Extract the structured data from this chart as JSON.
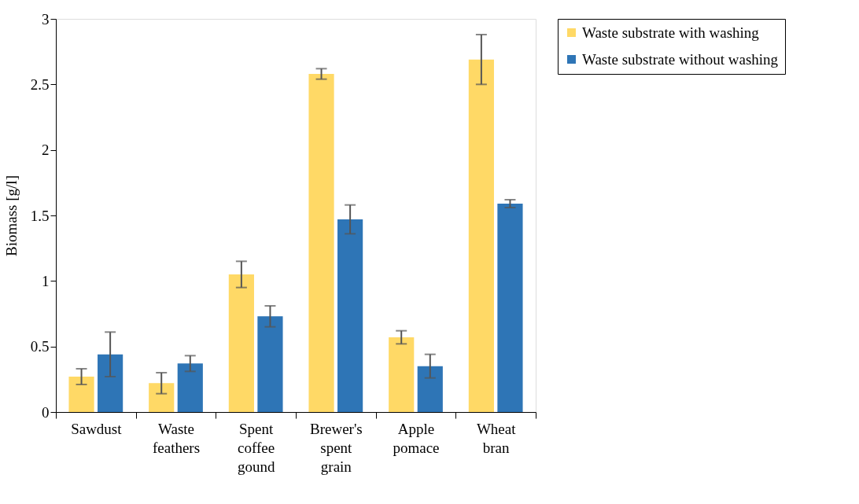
{
  "chart_data": {
    "type": "bar",
    "ylabel": "Biomass [g/l]",
    "categories": [
      "Sawdust",
      "Waste feathers",
      "Spent coffee gound",
      "Brewer's spent grain",
      "Apple pomace",
      "Wheat bran"
    ],
    "series": [
      {
        "name": "Waste substrate with washing",
        "color": "#ffd966",
        "values": [
          0.27,
          0.22,
          1.05,
          2.58,
          0.57,
          2.69
        ],
        "errors": [
          0.06,
          0.08,
          0.1,
          0.04,
          0.05,
          0.19
        ]
      },
      {
        "name": "Waste substrate without washing",
        "color": "#2e75b6",
        "values": [
          0.44,
          0.37,
          0.73,
          1.47,
          0.35,
          1.59
        ],
        "errors": [
          0.17,
          0.06,
          0.08,
          0.11,
          0.09,
          0.03
        ]
      }
    ],
    "ylim": [
      0,
      3
    ],
    "yticks": [
      0,
      0.5,
      1,
      1.5,
      2,
      2.5,
      3
    ],
    "grid": false,
    "legend": "right"
  }
}
